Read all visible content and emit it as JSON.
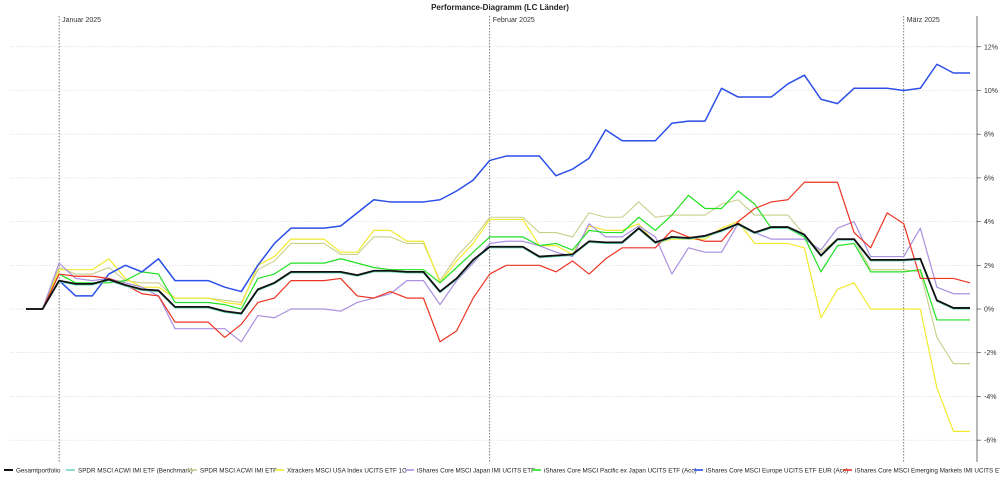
{
  "chart_data": {
    "type": "line",
    "title": "Performance-Diagramm (LC Länder)",
    "month_labels": [
      {
        "label": "Januar 2025",
        "x": 2
      },
      {
        "label": "Februar 2025",
        "x": 28
      },
      {
        "label": "März 2025",
        "x": 53
      }
    ],
    "ylim": [
      -7,
      13.5
    ],
    "yticks": [
      -6,
      -4,
      -2,
      0,
      2,
      4,
      6,
      8,
      10,
      12
    ],
    "ytick_labels": [
      "-6%",
      "-4%",
      "-2%",
      "0%",
      "2%",
      "4%",
      "6%",
      "8%",
      "10%",
      "12%"
    ],
    "xlim": [
      0,
      57
    ],
    "grid": true,
    "legend_position": "bottom",
    "x": [
      0,
      1,
      2,
      3,
      4,
      5,
      6,
      7,
      8,
      9,
      10,
      11,
      12,
      13,
      14,
      15,
      16,
      17,
      18,
      19,
      20,
      21,
      22,
      23,
      24,
      25,
      26,
      27,
      28,
      29,
      30,
      31,
      32,
      33,
      34,
      35,
      36,
      37,
      38,
      39,
      40,
      41,
      42,
      43,
      44,
      45,
      46,
      47,
      48,
      49,
      50,
      51,
      52,
      53,
      54,
      55,
      56,
      57
    ],
    "series": [
      {
        "name": "Gesamtportfolio",
        "color": "#111111",
        "width": 1.8,
        "values": [
          0,
          0,
          1.3,
          1.15,
          1.15,
          1.35,
          1.1,
          0.9,
          0.85,
          0.1,
          0.1,
          0.1,
          -0.1,
          -0.2,
          0.9,
          1.2,
          1.7,
          1.7,
          1.7,
          1.7,
          1.55,
          1.75,
          1.75,
          1.7,
          1.7,
          0.8,
          1.4,
          2.25,
          2.85,
          2.85,
          2.85,
          2.4,
          2.45,
          2.5,
          3.1,
          3.05,
          3.05,
          3.7,
          3.05,
          3.3,
          3.25,
          3.35,
          3.6,
          3.9,
          3.5,
          3.75,
          3.75,
          3.4,
          2.45,
          3.2,
          3.2,
          2.25,
          2.25,
          2.25,
          2.3,
          0.4,
          0.05,
          0.05
        ]
      },
      {
        "name": "SPDR MSCI ACWI IMI ETF (Benchmark)",
        "color": "#6cd9c0",
        "width": 1.1,
        "values": [
          0,
          0,
          1.25,
          1.1,
          1.1,
          1.3,
          1.05,
          0.85,
          0.8,
          0.05,
          0.05,
          0.05,
          -0.15,
          -0.25,
          0.85,
          1.15,
          1.65,
          1.65,
          1.65,
          1.65,
          1.5,
          1.7,
          1.7,
          1.65,
          1.65,
          0.75,
          1.35,
          2.2,
          2.8,
          2.8,
          2.8,
          2.35,
          2.4,
          2.45,
          3.05,
          3.0,
          3.0,
          3.65,
          3.0,
          3.25,
          3.2,
          3.3,
          3.55,
          3.85,
          3.45,
          3.7,
          3.7,
          3.35,
          2.4,
          3.15,
          3.15,
          2.2,
          2.2,
          2.2,
          2.25,
          0.35,
          0.0,
          0.0
        ]
      },
      {
        "name": "SPDR MSCI ACWI IMI ETF",
        "color": "#c9cf8a",
        "width": 1.1,
        "values": [
          0,
          0,
          1.9,
          1.6,
          1.6,
          1.9,
          1.3,
          1.2,
          1.2,
          0.5,
          0.5,
          0.5,
          0.4,
          0.3,
          1.8,
          2.2,
          3.0,
          3.0,
          3.0,
          2.5,
          2.5,
          3.3,
          3.3,
          3.0,
          3.0,
          1.3,
          2.4,
          3.2,
          4.2,
          4.2,
          4.2,
          3.5,
          3.5,
          3.3,
          4.4,
          4.2,
          4.2,
          4.9,
          4.2,
          4.3,
          4.3,
          4.3,
          4.8,
          5.0,
          4.3,
          4.3,
          4.3,
          3.4,
          2.6,
          3.2,
          3.2,
          1.8,
          1.8,
          1.8,
          1.7,
          -1.3,
          -2.5,
          -2.5
        ]
      },
      {
        "name": "Xtrackers MSCI USA Index UCITS ETF 1C",
        "color": "#f2ea2e",
        "width": 1.2,
        "values": [
          0,
          0,
          1.8,
          1.8,
          1.8,
          2.3,
          1.4,
          1.0,
          1.0,
          0.5,
          0.5,
          0.5,
          0.3,
          0.2,
          2.0,
          2.4,
          3.2,
          3.2,
          3.2,
          2.6,
          2.6,
          3.6,
          3.6,
          3.1,
          3.1,
          1.2,
          2.2,
          3.0,
          4.1,
          4.1,
          4.1,
          2.9,
          2.9,
          2.5,
          3.8,
          3.6,
          3.6,
          3.9,
          3.0,
          3.2,
          3.2,
          3.2,
          3.7,
          4.0,
          3.0,
          3.0,
          3.0,
          2.8,
          -0.4,
          0.9,
          1.2,
          0.0,
          0.0,
          0.0,
          0.0,
          -3.6,
          -5.6,
          -5.6
        ]
      },
      {
        "name": "iShares Core MSCI Japan IMI UCITS ETF",
        "color": "#a990e0",
        "width": 1.2,
        "values": [
          0,
          0,
          2.1,
          1.4,
          1.3,
          1.4,
          1.2,
          1.0,
          0.6,
          -0.9,
          -0.9,
          -0.9,
          -0.9,
          -1.5,
          -0.3,
          -0.4,
          0.0,
          0.0,
          0.0,
          -0.1,
          0.3,
          0.5,
          0.7,
          1.3,
          1.3,
          0.2,
          1.3,
          2.1,
          3.0,
          3.1,
          3.1,
          2.9,
          2.6,
          2.4,
          3.9,
          3.3,
          3.3,
          3.8,
          3.3,
          1.6,
          2.8,
          2.6,
          2.6,
          3.9,
          3.5,
          3.2,
          3.2,
          3.2,
          2.7,
          3.7,
          4.0,
          2.4,
          2.4,
          2.4,
          3.7,
          1.0,
          0.7,
          0.7
        ]
      },
      {
        "name": "iShares Core MSCI Pacific ex Japan UCITS ETF (Acc)",
        "color": "#22e022",
        "width": 1.2,
        "values": [
          0,
          0,
          1.6,
          1.2,
          1.2,
          1.2,
          1.3,
          1.7,
          1.6,
          0.3,
          0.3,
          0.3,
          0.2,
          0.0,
          1.4,
          1.6,
          2.1,
          2.1,
          2.1,
          2.3,
          2.1,
          1.9,
          1.8,
          1.8,
          1.8,
          1.2,
          1.9,
          2.6,
          3.3,
          3.3,
          3.3,
          2.9,
          3.0,
          2.7,
          3.6,
          3.5,
          3.5,
          4.2,
          3.6,
          4.3,
          5.2,
          4.6,
          4.6,
          5.4,
          4.8,
          3.7,
          3.7,
          3.3,
          1.7,
          2.9,
          3.0,
          1.7,
          1.7,
          1.7,
          1.8,
          -0.5,
          -0.5,
          -0.5
        ]
      },
      {
        "name": "iShares Core MSCI Europe UCITS ETF EUR (Acc)",
        "color": "#2b4fe8",
        "width": 1.5,
        "values": [
          0,
          0,
          1.3,
          0.6,
          0.6,
          1.6,
          2.0,
          1.7,
          2.3,
          1.3,
          1.3,
          1.3,
          1.0,
          0.8,
          2.0,
          3.0,
          3.7,
          3.7,
          3.7,
          3.8,
          4.4,
          5.0,
          4.9,
          4.9,
          4.9,
          5.0,
          5.4,
          5.9,
          6.8,
          7.0,
          7.0,
          7.0,
          6.1,
          6.4,
          6.9,
          8.2,
          7.7,
          7.7,
          7.7,
          8.5,
          8.6,
          8.6,
          10.1,
          9.7,
          9.7,
          9.7,
          10.3,
          10.7,
          9.6,
          9.4,
          10.1,
          10.1,
          10.1,
          10.0,
          10.1,
          11.2,
          10.8,
          10.8
        ]
      },
      {
        "name": "iShares Core MSCI Emerging Markets IMI UCITS ETF",
        "color": "#ee3322",
        "width": 1.2,
        "values": [
          0,
          0,
          1.6,
          1.5,
          1.5,
          1.4,
          1.1,
          0.7,
          0.6,
          -0.6,
          -0.6,
          -0.6,
          -1.3,
          -0.7,
          0.3,
          0.5,
          1.3,
          1.3,
          1.3,
          1.4,
          0.6,
          0.5,
          0.8,
          0.5,
          0.5,
          -1.5,
          -1.0,
          0.5,
          1.6,
          2.0,
          2.0,
          2.0,
          1.7,
          2.2,
          1.6,
          2.3,
          2.8,
          2.8,
          2.8,
          3.6,
          3.3,
          3.1,
          3.1,
          4.0,
          4.6,
          4.9,
          5.0,
          5.8,
          5.8,
          5.8,
          3.5,
          2.8,
          4.4,
          3.9,
          1.4,
          1.4,
          1.4,
          1.2
        ]
      }
    ]
  }
}
